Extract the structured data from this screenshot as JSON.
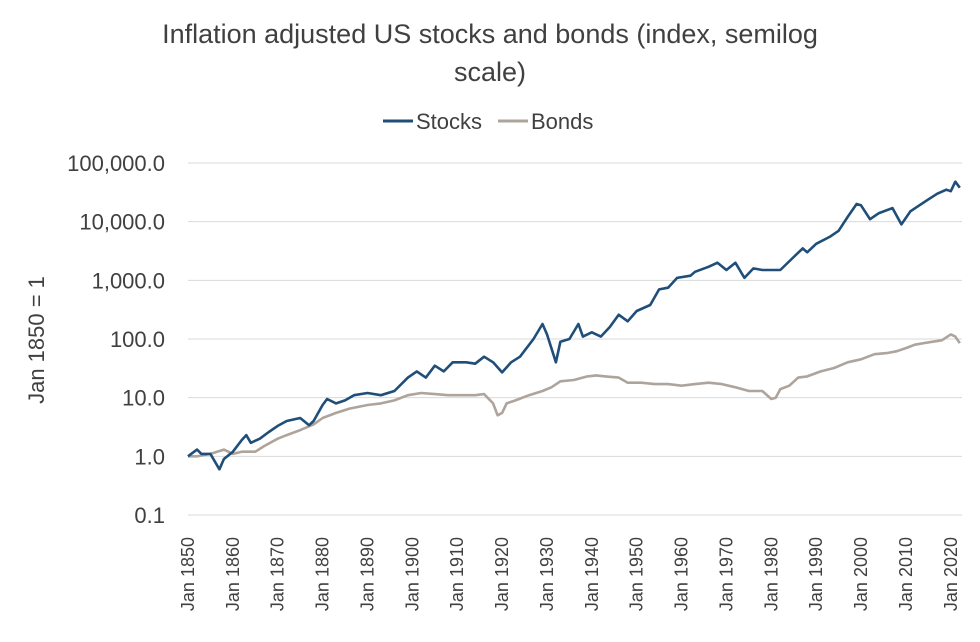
{
  "chart_data": {
    "type": "line",
    "title_lines": [
      "Inflation adjusted US stocks and bonds (index, semilog",
      "scale)"
    ],
    "ylabel": "Jan 1850 = 1",
    "y_scale": "log",
    "ylim": [
      0.1,
      100000
    ],
    "y_ticks": [
      0.1,
      1,
      10,
      100,
      1000,
      10000,
      100000
    ],
    "y_tick_labels": [
      "0.1",
      "1.0",
      "10.0",
      "100.0",
      "1,000.0",
      "10,000.0",
      "100,000.0"
    ],
    "xlim": [
      1850,
      2022.5
    ],
    "x_ticks": [
      1850,
      1860,
      1870,
      1880,
      1890,
      1900,
      1910,
      1920,
      1930,
      1940,
      1950,
      1960,
      1970,
      1980,
      1990,
      2000,
      2010,
      2020
    ],
    "x_tick_labels": [
      "Jan 1850",
      "Jan 1860",
      "Jan 1870",
      "Jan 1880",
      "Jan 1890",
      "Jan 1900",
      "Jan 1910",
      "Jan 1920",
      "Jan 1930",
      "Jan 1940",
      "Jan 1950",
      "Jan 1960",
      "Jan 1970",
      "Jan 1980",
      "Jan 1990",
      "Jan 2000",
      "Jan 2010",
      "Jan 2020"
    ],
    "legend": {
      "position": "top"
    },
    "grid": {
      "horizontal": true,
      "vertical": false
    },
    "series": [
      {
        "name": "Stocks",
        "color": "#1f4e79",
        "points": [
          [
            1850,
            1.0
          ],
          [
            1852,
            1.3
          ],
          [
            1853,
            1.1
          ],
          [
            1855,
            1.1
          ],
          [
            1857,
            0.6
          ],
          [
            1858,
            0.9
          ],
          [
            1860,
            1.2
          ],
          [
            1862,
            1.9
          ],
          [
            1863,
            2.3
          ],
          [
            1864,
            1.7
          ],
          [
            1866,
            2.0
          ],
          [
            1868,
            2.6
          ],
          [
            1870,
            3.3
          ],
          [
            1872,
            4.0
          ],
          [
            1875,
            4.5
          ],
          [
            1877,
            3.4
          ],
          [
            1878,
            4.0
          ],
          [
            1880,
            7.5
          ],
          [
            1881,
            9.5
          ],
          [
            1883,
            8.0
          ],
          [
            1885,
            9.0
          ],
          [
            1887,
            11.0
          ],
          [
            1890,
            12.0
          ],
          [
            1893,
            11.0
          ],
          [
            1896,
            13.0
          ],
          [
            1899,
            22.0
          ],
          [
            1901,
            28.0
          ],
          [
            1903,
            22.0
          ],
          [
            1905,
            35.0
          ],
          [
            1907,
            28.0
          ],
          [
            1909,
            40.0
          ],
          [
            1912,
            40.0
          ],
          [
            1914,
            38.0
          ],
          [
            1916,
            50.0
          ],
          [
            1918,
            40.0
          ],
          [
            1920,
            27.0
          ],
          [
            1922,
            40.0
          ],
          [
            1924,
            50.0
          ],
          [
            1927,
            100.0
          ],
          [
            1929,
            180.0
          ],
          [
            1930,
            120.0
          ],
          [
            1932,
            40.0
          ],
          [
            1933,
            90.0
          ],
          [
            1935,
            100.0
          ],
          [
            1937,
            180.0
          ],
          [
            1938,
            110.0
          ],
          [
            1940,
            130.0
          ],
          [
            1942,
            110.0
          ],
          [
            1944,
            160.0
          ],
          [
            1946,
            260.0
          ],
          [
            1948,
            200.0
          ],
          [
            1950,
            300.0
          ],
          [
            1953,
            380.0
          ],
          [
            1955,
            700.0
          ],
          [
            1957,
            750.0
          ],
          [
            1959,
            1100.0
          ],
          [
            1962,
            1200.0
          ],
          [
            1963,
            1400.0
          ],
          [
            1966,
            1700.0
          ],
          [
            1968,
            2000.0
          ],
          [
            1970,
            1500.0
          ],
          [
            1972,
            2000.0
          ],
          [
            1974,
            1100.0
          ],
          [
            1976,
            1600.0
          ],
          [
            1978,
            1500.0
          ],
          [
            1980,
            1500.0
          ],
          [
            1982,
            1500.0
          ],
          [
            1985,
            2500.0
          ],
          [
            1987,
            3500.0
          ],
          [
            1988,
            3000.0
          ],
          [
            1990,
            4200.0
          ],
          [
            1993,
            5500.0
          ],
          [
            1995,
            7000.0
          ],
          [
            1997,
            12000.0
          ],
          [
            1999,
            20000.0
          ],
          [
            2000,
            19000.0
          ],
          [
            2002,
            11000.0
          ],
          [
            2004,
            14000.0
          ],
          [
            2007,
            17000.0
          ],
          [
            2009,
            9000.0
          ],
          [
            2011,
            15000.0
          ],
          [
            2013,
            19000.0
          ],
          [
            2015,
            24000.0
          ],
          [
            2017,
            30000.0
          ],
          [
            2019,
            35000.0
          ],
          [
            2020,
            33000.0
          ],
          [
            2021,
            48000.0
          ],
          [
            2022,
            38000.0
          ]
        ]
      },
      {
        "name": "Bonds",
        "color": "#aea49c",
        "points": [
          [
            1850,
            1.0
          ],
          [
            1852,
            1.0
          ],
          [
            1855,
            1.1
          ],
          [
            1858,
            1.3
          ],
          [
            1860,
            1.1
          ],
          [
            1862,
            1.2
          ],
          [
            1865,
            1.2
          ],
          [
            1867,
            1.5
          ],
          [
            1870,
            2.0
          ],
          [
            1872,
            2.3
          ],
          [
            1875,
            2.8
          ],
          [
            1878,
            3.5
          ],
          [
            1880,
            4.5
          ],
          [
            1883,
            5.5
          ],
          [
            1886,
            6.5
          ],
          [
            1890,
            7.5
          ],
          [
            1893,
            8.0
          ],
          [
            1896,
            9.0
          ],
          [
            1899,
            11.0
          ],
          [
            1902,
            12.0
          ],
          [
            1905,
            11.5
          ],
          [
            1908,
            11.0
          ],
          [
            1911,
            11.0
          ],
          [
            1914,
            11.0
          ],
          [
            1916,
            11.5
          ],
          [
            1918,
            8.0
          ],
          [
            1919,
            5.0
          ],
          [
            1920,
            5.5
          ],
          [
            1921,
            8.0
          ],
          [
            1923,
            9.0
          ],
          [
            1926,
            11.0
          ],
          [
            1929,
            13.0
          ],
          [
            1931,
            15.0
          ],
          [
            1933,
            19.0
          ],
          [
            1936,
            20.0
          ],
          [
            1939,
            23.0
          ],
          [
            1941,
            24.0
          ],
          [
            1943,
            23.0
          ],
          [
            1946,
            22.0
          ],
          [
            1948,
            18.0
          ],
          [
            1951,
            18.0
          ],
          [
            1954,
            17.0
          ],
          [
            1957,
            17.0
          ],
          [
            1960,
            16.0
          ],
          [
            1963,
            17.0
          ],
          [
            1966,
            18.0
          ],
          [
            1969,
            17.0
          ],
          [
            1972,
            15.0
          ],
          [
            1975,
            13.0
          ],
          [
            1978,
            13.0
          ],
          [
            1980,
            9.5
          ],
          [
            1981,
            10.0
          ],
          [
            1982,
            14.0
          ],
          [
            1984,
            16.0
          ],
          [
            1986,
            22.0
          ],
          [
            1988,
            23.0
          ],
          [
            1991,
            28.0
          ],
          [
            1994,
            32.0
          ],
          [
            1997,
            40.0
          ],
          [
            2000,
            45.0
          ],
          [
            2003,
            55.0
          ],
          [
            2006,
            58.0
          ],
          [
            2008,
            62.0
          ],
          [
            2010,
            70.0
          ],
          [
            2012,
            80.0
          ],
          [
            2014,
            85.0
          ],
          [
            2016,
            90.0
          ],
          [
            2018,
            95.0
          ],
          [
            2020,
            120.0
          ],
          [
            2021,
            110.0
          ],
          [
            2022,
            85.0
          ]
        ]
      }
    ]
  }
}
